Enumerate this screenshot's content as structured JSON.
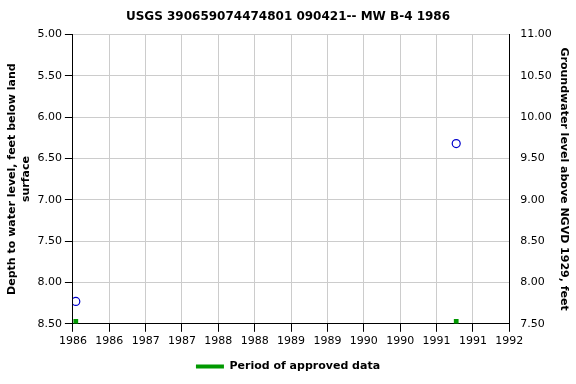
{
  "chart_data": {
    "type": "scatter",
    "title": "USGS 390659074474801 090421-- MW B-4 1986",
    "y_label": [
      "Depth to water level, feet below land",
      "surface"
    ],
    "y2_label": "Groundwater level above NGVD 1929, feet",
    "series": [
      {
        "x": [
          1986.04,
          1991.27
        ],
        "values": [
          8.23,
          6.32
        ],
        "color": "#0000cc",
        "marker": "circle"
      },
      {
        "name": "Period of approved data",
        "x": [
          1986.04,
          1991.27
        ],
        "values": [
          8.47,
          8.47
        ],
        "color": "#009900",
        "marker": "square"
      }
    ],
    "xlim": [
      1986,
      1992
    ],
    "xticks": [
      {
        "value": 1986,
        "label": "1986"
      },
      {
        "value": 1986.5,
        "label": "1986"
      },
      {
        "value": 1987,
        "label": "1987"
      },
      {
        "value": 1987.5,
        "label": "1987"
      },
      {
        "value": 1988,
        "label": "1988"
      },
      {
        "value": 1988.5,
        "label": "1988"
      },
      {
        "value": 1989,
        "label": "1989"
      },
      {
        "value": 1989.5,
        "label": "1989"
      },
      {
        "value": 1990,
        "label": "1990"
      },
      {
        "value": 1990.5,
        "label": "1990"
      },
      {
        "value": 1991,
        "label": "1991"
      },
      {
        "value": 1991.5,
        "label": "1991"
      },
      {
        "value": 1992,
        "label": "1992"
      }
    ],
    "ylim": [
      8.5,
      5
    ],
    "yticks": [
      {
        "value": 5,
        "label": "5.00"
      },
      {
        "value": 5.5,
        "label": "5.50"
      },
      {
        "value": 6,
        "label": "6.00"
      },
      {
        "value": 6.5,
        "label": "6.50"
      },
      {
        "value": 7,
        "label": "7.00"
      },
      {
        "value": 7.5,
        "label": "7.50"
      },
      {
        "value": 8,
        "label": "8.00"
      },
      {
        "value": 8.5,
        "label": "8.50"
      }
    ],
    "y2lim": [
      7.5,
      11
    ],
    "y2ticks": [
      {
        "value": 7.5,
        "label": "7.50"
      },
      {
        "value": 8,
        "label": "8.00"
      },
      {
        "value": 8.5,
        "label": "8.50"
      },
      {
        "value": 9,
        "label": "9.00"
      },
      {
        "value": 9.5,
        "label": "9.50"
      },
      {
        "value": 10,
        "label": "10.00"
      },
      {
        "value": 10.5,
        "label": "10.50"
      },
      {
        "value": 11,
        "label": "11.00"
      }
    ],
    "grid": true,
    "legend": "bottom"
  }
}
